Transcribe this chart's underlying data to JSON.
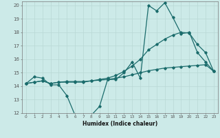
{
  "bg_color": "#cceae8",
  "grid_color": "#b8d8d5",
  "line_color": "#1a6b6b",
  "xlabel": "Humidex (Indice chaleur)",
  "xlim": [
    -0.5,
    23.5
  ],
  "ylim": [
    12,
    20.3
  ],
  "yticks": [
    12,
    13,
    14,
    15,
    16,
    17,
    18,
    19,
    20
  ],
  "xticks": [
    0,
    1,
    2,
    3,
    4,
    5,
    6,
    7,
    8,
    9,
    10,
    11,
    12,
    13,
    14,
    15,
    16,
    17,
    18,
    19,
    20,
    21,
    22,
    23
  ],
  "line1_x": [
    0,
    1,
    2,
    3,
    4,
    5,
    6,
    7,
    8,
    9,
    10,
    11,
    12,
    13,
    14,
    15,
    16,
    17,
    18,
    19,
    20,
    21,
    22,
    23
  ],
  "line1_y": [
    14.2,
    14.7,
    14.6,
    14.1,
    14.1,
    13.3,
    11.85,
    11.8,
    11.85,
    12.5,
    14.5,
    14.5,
    15.0,
    15.8,
    14.6,
    20.0,
    19.6,
    20.2,
    19.1,
    17.9,
    18.0,
    16.5,
    15.8,
    15.1
  ],
  "line2_x": [
    0,
    1,
    2,
    3,
    4,
    5,
    6,
    7,
    8,
    9,
    10,
    11,
    12,
    13,
    14,
    15,
    16,
    17,
    18,
    19,
    20,
    21,
    22,
    23
  ],
  "line2_y": [
    14.2,
    14.3,
    14.4,
    14.2,
    14.3,
    14.3,
    14.3,
    14.3,
    14.4,
    14.5,
    14.6,
    14.8,
    15.1,
    15.5,
    16.0,
    16.7,
    17.1,
    17.5,
    17.8,
    18.0,
    17.95,
    17.1,
    16.5,
    15.1
  ],
  "line3_x": [
    0,
    1,
    2,
    3,
    4,
    5,
    6,
    7,
    8,
    9,
    10,
    11,
    12,
    13,
    14,
    15,
    16,
    17,
    18,
    19,
    20,
    21,
    22,
    23
  ],
  "line3_y": [
    14.2,
    14.3,
    14.4,
    14.2,
    14.3,
    14.35,
    14.35,
    14.35,
    14.4,
    14.45,
    14.5,
    14.6,
    14.7,
    14.85,
    15.0,
    15.15,
    15.25,
    15.35,
    15.4,
    15.45,
    15.5,
    15.55,
    15.6,
    15.1
  ]
}
